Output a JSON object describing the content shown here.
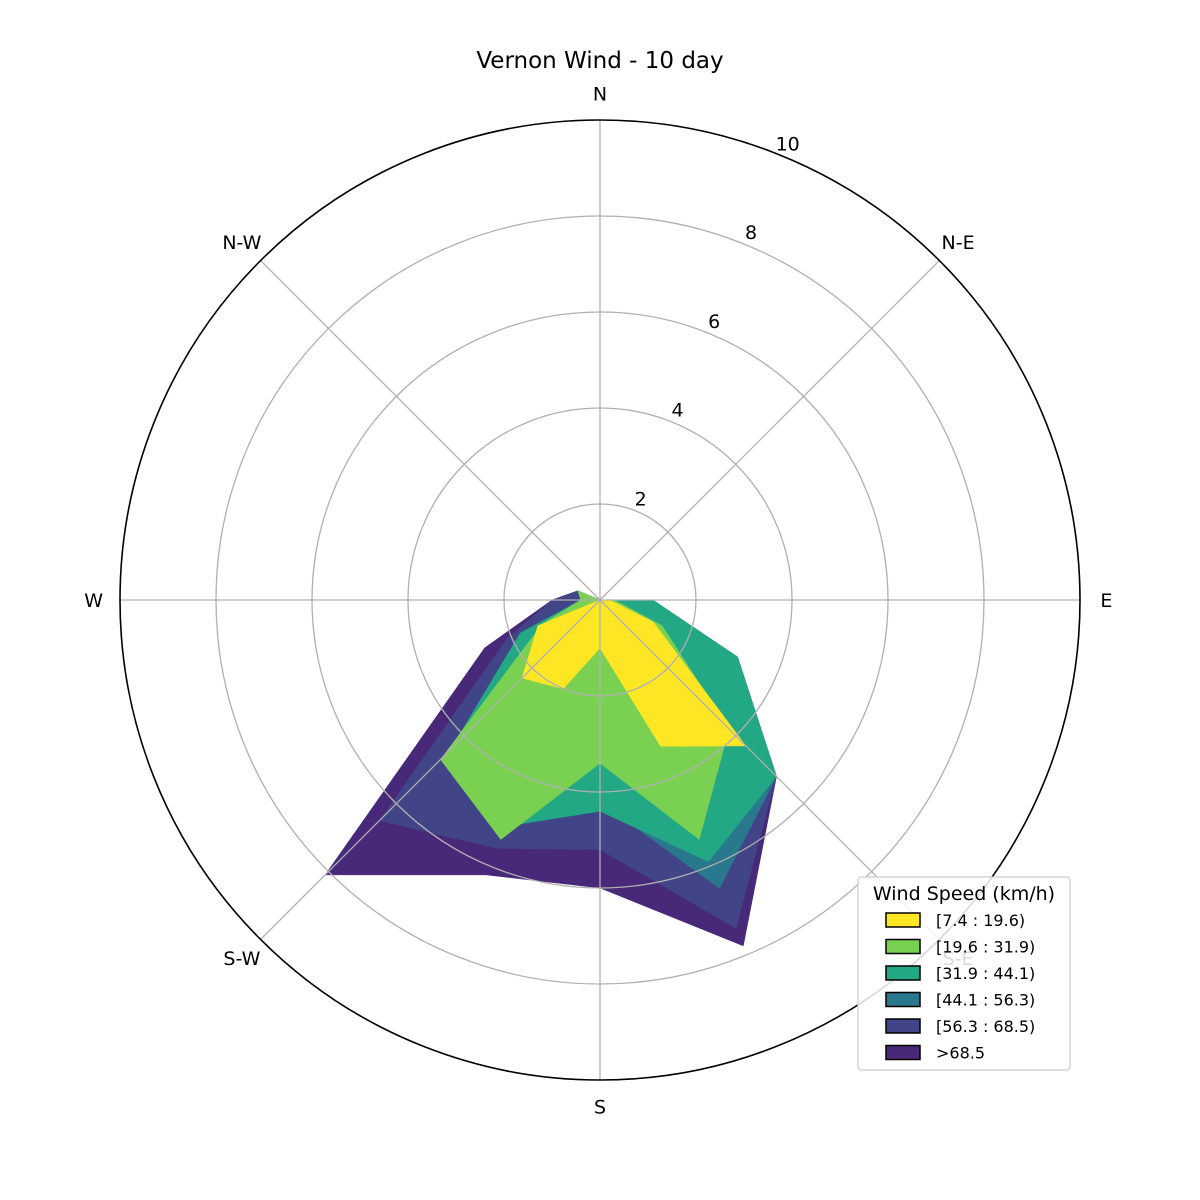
{
  "chart_data": {
    "type": "area",
    "title": "Vernon Wind - 10 day",
    "directions": [
      "N",
      "N-E",
      "E",
      "S-E",
      "S",
      "S-W",
      "W",
      "N-W"
    ],
    "radial_ticks": [
      "2",
      "4",
      "6",
      "8",
      "10"
    ],
    "radial_range": [
      0,
      10
    ],
    "grid": true,
    "legend": {
      "title": "Wind Speed (km/h)",
      "placement": "lower-right",
      "entries": [
        "[7.4 : 19.6)",
        "[19.6 : 31.9)",
        "[31.9 : 44.1)",
        "[44.1 : 56.3)",
        "[56.3 : 68.5)",
        ">68.5"
      ]
    },
    "sectors_deg": [
      0,
      22.5,
      45,
      67.5,
      90,
      112.5,
      135,
      157.5,
      180,
      202.5,
      225,
      247.5,
      270,
      292.5,
      315,
      337.5
    ],
    "series": [
      {
        "name": "[7.4 : 19.6)",
        "color": "#fde725",
        "values": [
          0,
          0,
          0,
          0,
          0.2,
          1.2,
          4.3,
          3.3,
          1.0,
          2.0,
          2.3,
          1.4,
          0,
          0,
          0,
          0
        ]
      },
      {
        "name": "[19.6 : 31.9)",
        "color": "#7ad151",
        "values": [
          0,
          0,
          0,
          0,
          0.3,
          1.4,
          3.8,
          5.4,
          3.4,
          5.4,
          4.7,
          1.3,
          0.4,
          0.5,
          0,
          0
        ]
      },
      {
        "name": "[31.9 : 44.1)",
        "color": "#22a884",
        "values": [
          0,
          0,
          0,
          0,
          1.1,
          3.1,
          5.2,
          5.9,
          4.4,
          5.1,
          4.4,
          1.8,
          0.4,
          0.5,
          0,
          0
        ]
      },
      {
        "name": "[44.1 : 56.3)",
        "color": "#2a788e",
        "values": [
          0,
          0,
          0,
          0,
          1.1,
          3.1,
          5.2,
          6.5,
          4.2,
          4.7,
          4.0,
          1.8,
          0.4,
          0.5,
          0,
          0
        ]
      },
      {
        "name": "[56.3 : 68.5)",
        "color": "#414487",
        "values": [
          0,
          0,
          0,
          0,
          1.1,
          3.1,
          5.2,
          7.4,
          5.2,
          5.6,
          6.5,
          2.1,
          1.0,
          0.5,
          0,
          0
        ]
      },
      {
        "name": ">68.5",
        "color": "#482878",
        "values": [
          0,
          0,
          0,
          0,
          1.1,
          3.1,
          5.2,
          7.8,
          6.0,
          6.2,
          8.1,
          2.6,
          1.0,
          0.5,
          0,
          0
        ]
      }
    ]
  }
}
